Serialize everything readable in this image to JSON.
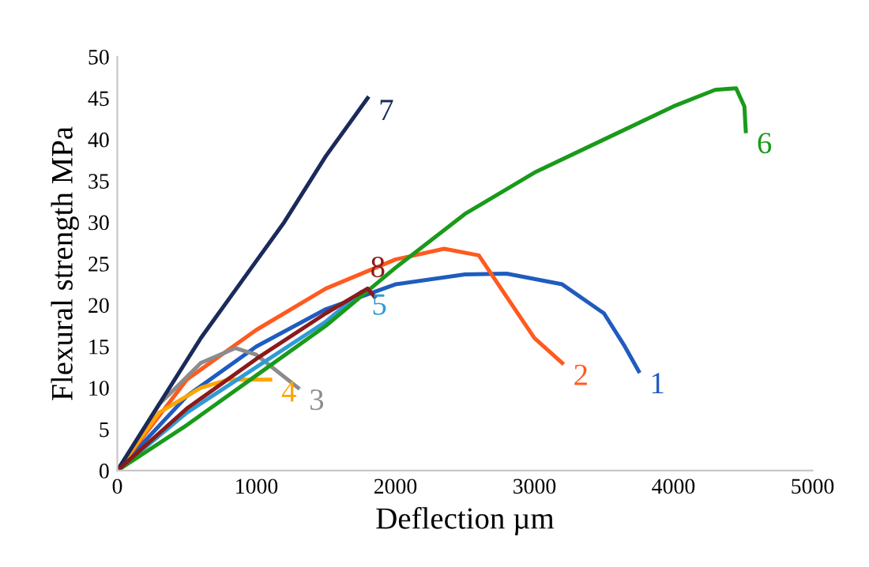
{
  "chart_data": {
    "type": "line",
    "xlabel": "Deflection µm",
    "ylabel": "Flexural strength MPa",
    "xlim": [
      0,
      5000
    ],
    "ylim": [
      0,
      50
    ],
    "xticks": [
      0,
      1000,
      2000,
      3000,
      4000,
      5000
    ],
    "yticks": [
      0,
      5,
      10,
      15,
      20,
      25,
      30,
      35,
      40,
      45,
      50
    ],
    "grid": false,
    "legend": false,
    "marker": "none",
    "line_style": "solid",
    "series": [
      {
        "name": "1",
        "color": "#1f5cbf",
        "x": [
          0,
          500,
          1000,
          1500,
          2000,
          2500,
          2800,
          3200,
          3500,
          3650,
          3750
        ],
        "values": [
          0,
          9,
          15,
          19.5,
          22.5,
          23.7,
          23.8,
          22.5,
          19,
          15,
          12
        ]
      },
      {
        "name": "2",
        "color": "#ff5a1f",
        "x": [
          0,
          500,
          1000,
          1500,
          2000,
          2350,
          2600,
          2800,
          3000,
          3200
        ],
        "values": [
          0,
          11,
          17,
          22,
          25.5,
          26.8,
          26,
          21,
          16,
          13
        ]
      },
      {
        "name": "3",
        "color": "#8c8c8c",
        "x": [
          0,
          300,
          600,
          850,
          1000,
          1300
        ],
        "values": [
          0,
          8,
          13,
          14.8,
          14,
          10
        ]
      },
      {
        "name": "4",
        "color": "#ffa500",
        "x": [
          0,
          300,
          600,
          800,
          1100
        ],
        "values": [
          0,
          7,
          10,
          11,
          11
        ]
      },
      {
        "name": "5",
        "color": "#2e9bd6",
        "x": [
          0,
          500,
          1000,
          1500,
          1750
        ],
        "values": [
          0,
          7,
          12.5,
          18,
          21.5
        ]
      },
      {
        "name": "6",
        "color": "#1a9a1a",
        "x": [
          0,
          500,
          1000,
          1500,
          1750,
          2000,
          2500,
          3000,
          3500,
          4000,
          4300,
          4450,
          4510,
          4520
        ],
        "values": [
          0,
          5.5,
          11.5,
          17.5,
          21,
          24.5,
          31,
          36,
          40,
          44,
          46,
          46.2,
          44,
          41
        ]
      },
      {
        "name": "7",
        "color": "#1a2a5a",
        "x": [
          0,
          300,
          600,
          900,
          1200,
          1500,
          1800
        ],
        "values": [
          0,
          8,
          16,
          23,
          30,
          38,
          45
        ]
      },
      {
        "name": "8",
        "color": "#8b1a1a",
        "x": [
          0,
          500,
          1000,
          1500,
          1800,
          1850
        ],
        "values": [
          0,
          7.5,
          13.5,
          19,
          22,
          21
        ]
      }
    ]
  }
}
